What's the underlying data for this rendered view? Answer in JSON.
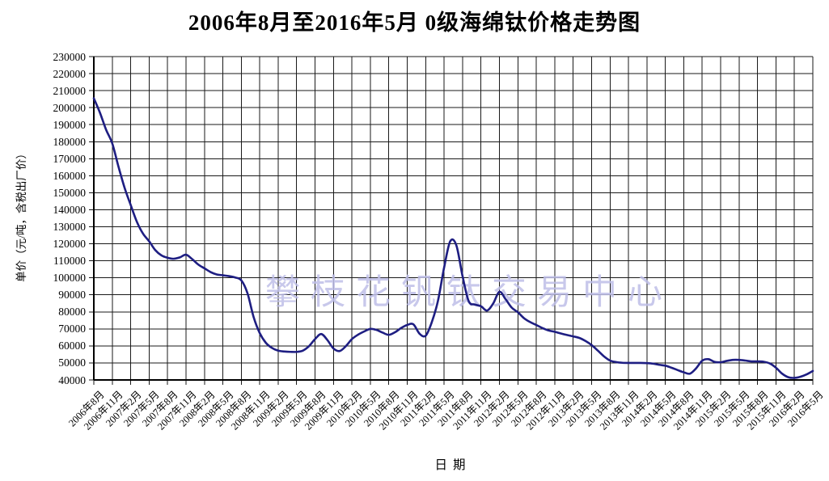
{
  "watermark": "攀枝花钒钛交易中心",
  "chart_data": {
    "type": "line",
    "title": "2006年8月至2016年5月 0级海绵钛价格走势图",
    "xlabel": "日期",
    "ylabel": "单价（元/吨，含税出厂价）",
    "ylim": [
      40000,
      230000
    ],
    "ytick_step": 10000,
    "grid": true,
    "legend": "none",
    "line_color": "#1e1e82",
    "grid_color": "#1a1a1a",
    "watermark_color": "#bfbfe8",
    "x_tick_every": 3,
    "x_tick_labels": [
      "2006年8月",
      "2006年11月",
      "2007年2月",
      "2007年5月",
      "2007年8月",
      "2007年11月",
      "2008年2月",
      "2008年5月",
      "2008年8月",
      "2008年11月",
      "2009年2月",
      "2009年5月",
      "2009年8月",
      "2009年11月",
      "2010年2月",
      "2010年5月",
      "2010年8月",
      "2010年11月",
      "2011年2月",
      "2011年5月",
      "2011年8月",
      "2011年11月",
      "2012年2月",
      "2012年5月",
      "2012年8月",
      "2012年11月",
      "2013年2月",
      "2013年5月",
      "2013年8月",
      "2013年11月",
      "2014年2月",
      "2014年5月",
      "2014年8月",
      "2014年11月",
      "2015年2月",
      "2015年5月",
      "2015年8月",
      "2015年11月",
      "2016年2月",
      "2016年5月"
    ],
    "y_tick_labels": [
      "230000",
      "220000",
      "210000",
      "200000",
      "190000",
      "180000",
      "170000",
      "160000",
      "150000",
      "140000",
      "130000",
      "120000",
      "110000",
      "100000",
      "90000",
      "80000",
      "70000",
      "60000",
      "50000",
      "40000"
    ],
    "values": [
      205500,
      197000,
      187000,
      179000,
      165500,
      153000,
      142800,
      133000,
      126000,
      121500,
      116300,
      113200,
      111800,
      111200,
      112000,
      113600,
      111000,
      107800,
      105600,
      103400,
      102000,
      101500,
      101000,
      100200,
      98500,
      91000,
      77000,
      67500,
      61800,
      58800,
      57200,
      56700,
      56500,
      56500,
      57200,
      59800,
      64000,
      67000,
      63500,
      58500,
      57000,
      59800,
      64000,
      66600,
      68500,
      70000,
      69400,
      67800,
      66500,
      68000,
      70500,
      72300,
      72700,
      67200,
      66000,
      74000,
      86500,
      106000,
      121500,
      119000,
      101000,
      86300,
      84300,
      83300,
      80800,
      85000,
      91800,
      87500,
      82500,
      79800,
      76300,
      74000,
      72300,
      70500,
      69100,
      68300,
      67300,
      66400,
      65600,
      64700,
      62900,
      60500,
      57300,
      53900,
      51400,
      50500,
      50100,
      50000,
      50000,
      50000,
      49900,
      49600,
      48900,
      48400,
      47200,
      45800,
      44500,
      43700,
      46800,
      51300,
      52200,
      50600,
      50400,
      51200,
      51800,
      51800,
      51400,
      50900,
      50900,
      50700,
      49700,
      47200,
      43700,
      41600,
      41200,
      41900,
      43300,
      45300
    ]
  }
}
